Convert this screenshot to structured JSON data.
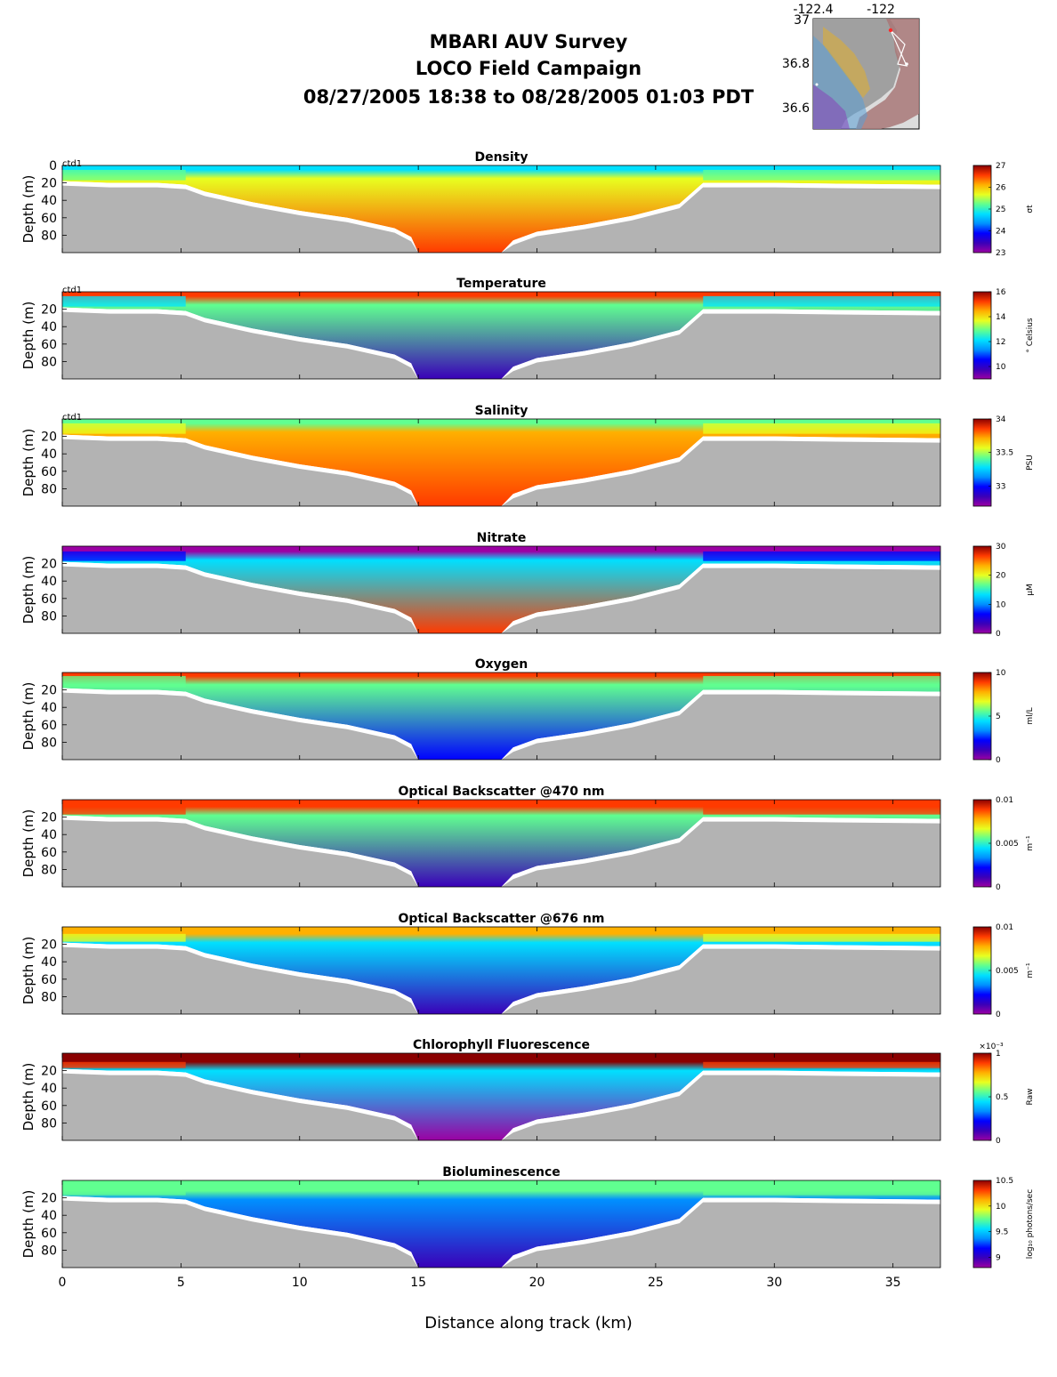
{
  "header": {
    "title_lines": [
      "MBARI AUV Survey",
      "LOCO Field Campaign",
      "08/27/2005 18:38  to 08/28/2005 01:03 PDT"
    ]
  },
  "inset_map": {
    "lon_ticks": [
      "-122.4",
      "-122"
    ],
    "lat_ticks": [
      "37",
      "36.8",
      "36.6"
    ]
  },
  "colors": {
    "terrain": "#b3b3b3",
    "jet": [
      "#9b00a3",
      "#3a00b8",
      "#0000ff",
      "#0090ff",
      "#00e0ff",
      "#60ff90",
      "#e8ff20",
      "#ffb000",
      "#ff3a00",
      "#8a0000"
    ]
  },
  "chart_data": {
    "type": "heatmap",
    "xlabel": "Distance along track (km)",
    "x_ticks": [
      "0",
      "5",
      "10",
      "15",
      "20",
      "25",
      "30",
      "35"
    ],
    "xlim": [
      0,
      37
    ],
    "ylabel": "Depth (m)",
    "ylim": [
      100,
      0
    ],
    "seafloor_depth_profile": {
      "distance_km": [
        0,
        2,
        4,
        5.2,
        6,
        8,
        10,
        12,
        14,
        14.7,
        15,
        16,
        17,
        18.5,
        19,
        20,
        22,
        24,
        26,
        27,
        30,
        33,
        37
      ],
      "depth_m": [
        18,
        20,
        20,
        22,
        30,
        42,
        52,
        60,
        72,
        82,
        100,
        100,
        100,
        100,
        86,
        76,
        68,
        58,
        44,
        20,
        20,
        21,
        22
      ]
    },
    "panels": [
      {
        "title": "Density",
        "y_ticks": [
          "0",
          "20",
          "40",
          "60",
          "80"
        ],
        "track_label": "ctd1",
        "colorbar": {
          "ticks": [
            "27",
            "26",
            "25",
            "24",
            "23"
          ],
          "unit": "σt",
          "range": [
            23,
            27
          ]
        },
        "surface_value": 24.6,
        "deep_value": 26.4,
        "shelf_value": 25.3,
        "surface_layer_m": 5
      },
      {
        "title": "Temperature",
        "y_ticks": [
          "20",
          "40",
          "60",
          "80"
        ],
        "track_label": "ctd1",
        "colorbar": {
          "ticks": [
            "16",
            "14",
            "12",
            "10"
          ],
          "unit": "° Celsius",
          "range": [
            9,
            16
          ]
        },
        "surface_value": 15.5,
        "deep_value": 10.0,
        "shelf_value": 12.3,
        "surface_layer_m": 5
      },
      {
        "title": "Salinity",
        "y_ticks": [
          "20",
          "40",
          "60",
          "80"
        ],
        "track_label": "ctd1",
        "colorbar": {
          "ticks": [
            "34",
            "33.5",
            "33"
          ],
          "unit": "PSU",
          "range": [
            32.7,
            34
          ]
        },
        "surface_value": 33.45,
        "deep_value": 33.9,
        "shelf_value": 33.5,
        "surface_layer_m": 5
      },
      {
        "title": "Nitrate",
        "y_ticks": [
          "20",
          "40",
          "60",
          "80"
        ],
        "colorbar": {
          "ticks": [
            "30",
            "20",
            "10",
            "0"
          ],
          "unit": "μM",
          "range": [
            0,
            30
          ]
        },
        "surface_value": 1,
        "deep_value": 25,
        "shelf_value": 5,
        "surface_layer_m": 6
      },
      {
        "title": "Oxygen",
        "y_ticks": [
          "20",
          "40",
          "60",
          "80"
        ],
        "colorbar": {
          "ticks": [
            "10",
            "5",
            "0"
          ],
          "unit": "ml/L",
          "range": [
            0,
            10
          ]
        },
        "surface_value": 8.8,
        "deep_value": 2.4,
        "shelf_value": 5.0,
        "surface_layer_m": 4
      },
      {
        "title": "Optical Backscatter @470 nm",
        "y_ticks": [
          "20",
          "40",
          "60",
          "80"
        ],
        "colorbar": {
          "ticks": [
            "0.01",
            "0.005",
            "0"
          ],
          "unit": "m⁻¹",
          "range": [
            0,
            0.01
          ]
        },
        "surface_value": 0.009,
        "deep_value": 0.0012,
        "shelf_value": 0.009,
        "surface_layer_m": 8
      },
      {
        "title": "Optical Backscatter @676 nm",
        "y_ticks": [
          "20",
          "40",
          "60",
          "80"
        ],
        "colorbar": {
          "ticks": [
            "0.01",
            "0.005",
            "0"
          ],
          "unit": "m⁻¹",
          "range": [
            0,
            0.01
          ]
        },
        "surface_value": 0.008,
        "deep_value": 0.0006,
        "shelf_value": 0.007,
        "surface_layer_m": 8
      },
      {
        "title": "Chlorophyll Fluorescence",
        "y_ticks": [
          "20",
          "40",
          "60",
          "80"
        ],
        "colorbar": {
          "ticks": [
            "1",
            "0.5",
            "0"
          ],
          "unit": "Raw",
          "exponent": "×10⁻³",
          "range": [
            0,
            1
          ]
        },
        "surface_value": 0.95,
        "deep_value": 0.02,
        "shelf_value": 0.9,
        "surface_layer_m": 10
      },
      {
        "title": "Bioluminescence",
        "y_ticks": [
          "20",
          "40",
          "60",
          "80"
        ],
        "colorbar": {
          "ticks": [
            "10.5",
            "10",
            "9.5",
            "9"
          ],
          "unit": "log₁₀ photons/sec",
          "range": [
            8.8,
            10.5
          ]
        },
        "surface_value": 9.7,
        "deep_value": 8.9,
        "shelf_value": 9.8,
        "surface_layer_m": 12
      }
    ]
  }
}
